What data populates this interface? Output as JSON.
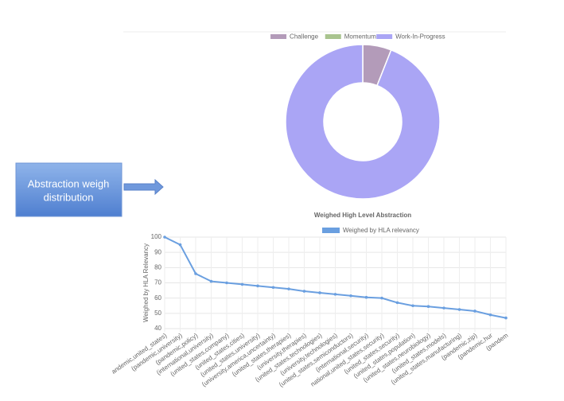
{
  "callout": {
    "lines": [
      "Abstraction weigh",
      "distribution"
    ]
  },
  "chart_data": [
    {
      "type": "doughnut",
      "categories": [
        "Challenge",
        "Momentum",
        "Work-In-Progress"
      ],
      "values": [
        6,
        0,
        94
      ],
      "colors": [
        "#b39bb9",
        "#a9c48f",
        "#aaa5f5"
      ],
      "legend": "top"
    },
    {
      "type": "line",
      "title": "Weighed High Level Abstraction",
      "y_label": "Weighed by HLA Relevancy",
      "categories": [
        "andemic,united_states)",
        "(pandemic,university)",
        "(pandemic,policy)",
        "(international,university)",
        "(united_states,company)",
        "(united_states,cities)",
        "(united_states,university)",
        "(university,america,uncertainty)",
        "(united_states,therapies)",
        "(university,therapies)",
        "(united_states,technologies)",
        "(university,technologies)",
        "(united_states,semiconductors)",
        "(international,security)",
        "national,united_states,security)",
        "(united_states,security)",
        "(united_states,population)",
        "(united_states,neurobiology)",
        "(united_states,models)",
        "(united_states,manufacturing)",
        "(pandemic,zip)",
        "(pandemic,hur",
        "(pandem"
      ],
      "series": [
        {
          "name": "Weighed by HLA relevancy",
          "color": "#6a9fe0",
          "values": [
            100,
            95,
            76,
            71,
            70,
            69,
            68,
            67,
            66,
            64.5,
            63.5,
            62.5,
            61.5,
            60.5,
            60,
            57,
            55,
            54.5,
            53.5,
            52.5,
            51.5,
            49,
            47
          ]
        }
      ],
      "ylim": [
        40,
        100
      ],
      "yticks": [
        40,
        50,
        60,
        70,
        80,
        90,
        100
      ],
      "grid": true,
      "legend": "top"
    }
  ]
}
